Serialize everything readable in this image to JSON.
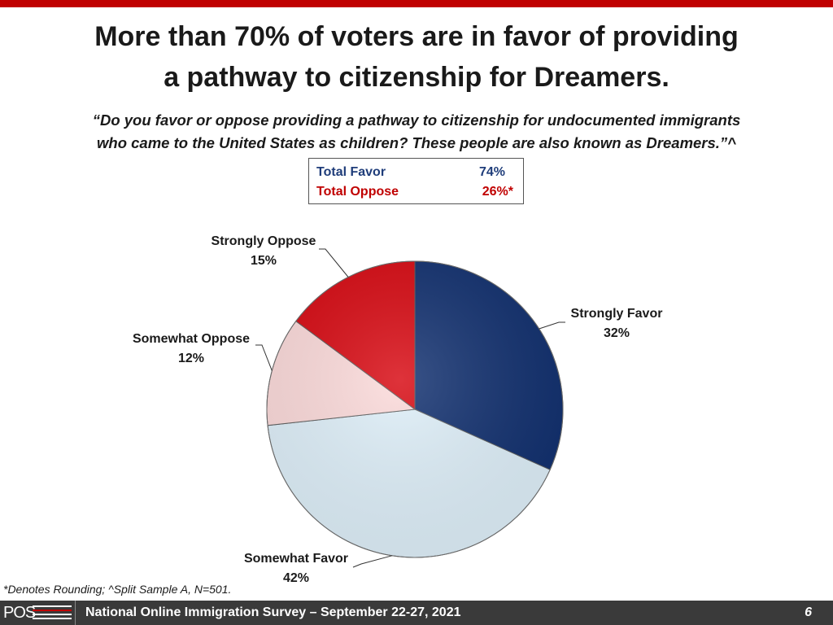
{
  "title": {
    "line1": "More than 70% of voters are in favor of providing",
    "line2": "a pathway to citizenship for Dreamers."
  },
  "question": {
    "line1": "“Do you favor or oppose providing a pathway to citizenship for undocumented immigrants",
    "line2": "who came to the United States as children? These people are also known as Dreamers.”^"
  },
  "totals": {
    "favor_label": "Total Favor",
    "favor_value": "74%",
    "oppose_label": "Total Oppose",
    "oppose_value": "26%*",
    "favor_color": "#1f3d7a",
    "oppose_color": "#c00000"
  },
  "chart_data": {
    "type": "pie",
    "slices": [
      {
        "label": "Strongly Favor",
        "value": 32,
        "value_label": "32%",
        "color": "#0f2e6e"
      },
      {
        "label": "Somewhat Favor",
        "value": 42,
        "value_label": "42%",
        "color": "#dff0fa"
      },
      {
        "label": "Somewhat Oppose",
        "value": 12,
        "value_label": "12%",
        "color": "#fcdada"
      },
      {
        "label": "Strongly Oppose",
        "value": 15,
        "value_label": "15%",
        "color": "#d7060f"
      }
    ],
    "start": "12 o'clock",
    "direction": "clockwise"
  },
  "footnote": "*Denotes Rounding; ^Split Sample A, N=501.",
  "footer": {
    "logo": "POS",
    "survey": "National Online Immigration Survey – September 22-27, 2021",
    "page": "6"
  }
}
